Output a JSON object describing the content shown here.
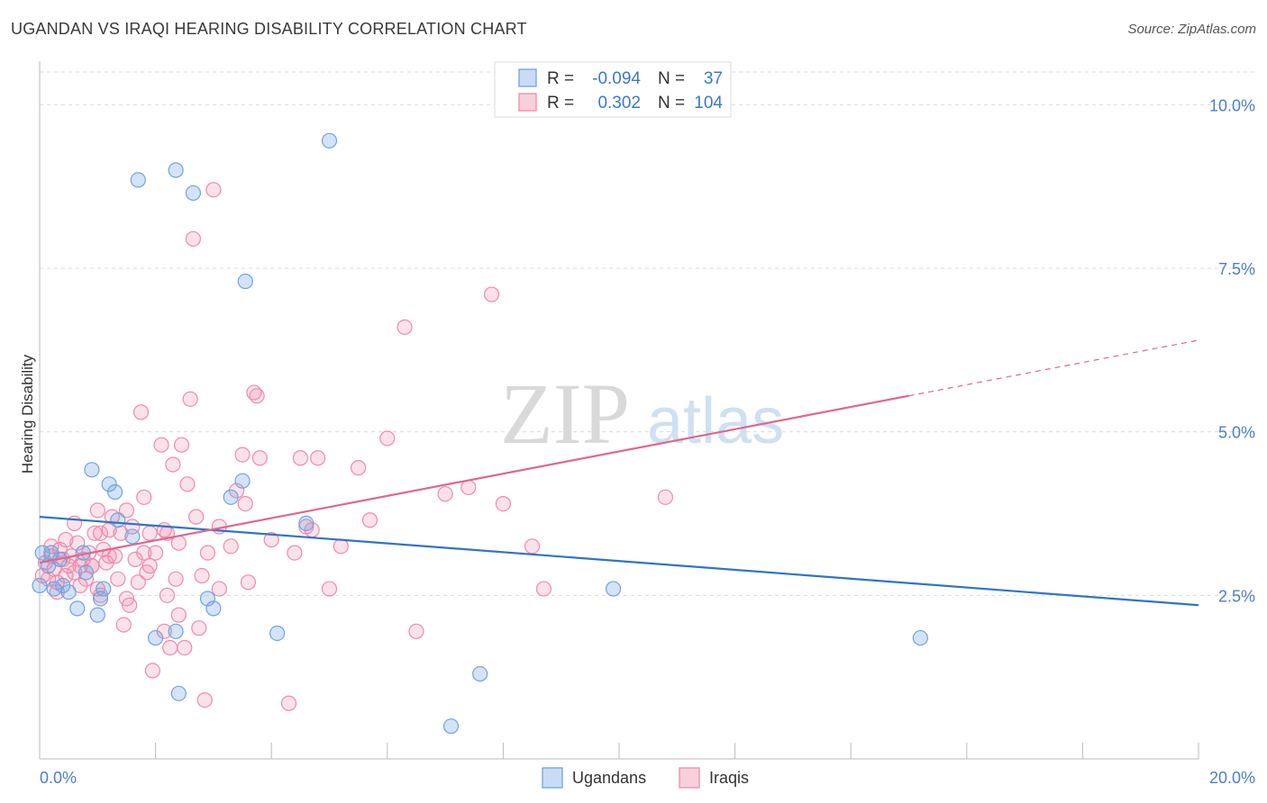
{
  "chart_data": {
    "type": "scatter",
    "title": "UGANDAN VS IRAQI HEARING DISABILITY CORRELATION CHART",
    "source": "Source: ZipAtlas.com",
    "ylabel": "Hearing Disability",
    "xlim": [
      0,
      20
    ],
    "ylim": [
      0,
      10.5
    ],
    "x_ticks": [
      {
        "value": 0,
        "label": "0.0%"
      },
      {
        "value": 20,
        "label": "20.0%"
      }
    ],
    "y_ticks": [
      {
        "value": 2.5,
        "label": "2.5%"
      },
      {
        "value": 5.0,
        "label": "5.0%"
      },
      {
        "value": 7.5,
        "label": "7.5%"
      },
      {
        "value": 10.0,
        "label": "10.0%"
      }
    ],
    "watermark": {
      "part1": "ZIP",
      "part2": "atlas"
    },
    "legend": {
      "rows": [
        {
          "r_label": "R =",
          "r_value": "-0.094",
          "n_label": "N =",
          "n_value": "37",
          "color": "#6fa3e0"
        },
        {
          "r_label": "R =",
          "r_value": "0.302",
          "n_label": "N =",
          "n_value": "104",
          "color": "#f08aaa"
        }
      ]
    },
    "bottom_legend": [
      {
        "label": "Ugandans",
        "color": "#6fa3e0"
      },
      {
        "label": "Iraqis",
        "color": "#f08aaa"
      }
    ],
    "series": [
      {
        "name": "Ugandans",
        "color": "#6fa3e0",
        "line_color": "#2f74c9",
        "trend": {
          "x0": 0,
          "y0": 3.7,
          "x1": 20,
          "y1": 2.35
        },
        "points": [
          [
            0.0,
            2.65
          ],
          [
            0.05,
            3.15
          ],
          [
            0.2,
            3.15
          ],
          [
            0.25,
            2.6
          ],
          [
            0.35,
            3.05
          ],
          [
            0.4,
            2.65
          ],
          [
            0.5,
            2.55
          ],
          [
            0.65,
            2.3
          ],
          [
            0.75,
            3.15
          ],
          [
            0.8,
            2.85
          ],
          [
            0.9,
            4.42
          ],
          [
            1.0,
            2.2
          ],
          [
            1.05,
            2.45
          ],
          [
            1.1,
            2.6
          ],
          [
            1.2,
            4.2
          ],
          [
            1.3,
            4.08
          ],
          [
            1.35,
            3.65
          ],
          [
            1.6,
            3.4
          ],
          [
            1.7,
            8.85
          ],
          [
            2.0,
            1.85
          ],
          [
            2.35,
            1.95
          ],
          [
            2.4,
            1.0
          ],
          [
            2.35,
            9.0
          ],
          [
            2.65,
            8.65
          ],
          [
            2.9,
            2.45
          ],
          [
            3.0,
            2.3
          ],
          [
            3.3,
            4.0
          ],
          [
            3.5,
            4.25
          ],
          [
            3.55,
            7.3
          ],
          [
            4.1,
            1.92
          ],
          [
            4.6,
            3.6
          ],
          [
            5.0,
            9.45
          ],
          [
            7.1,
            0.5
          ],
          [
            7.6,
            1.3
          ],
          [
            9.9,
            2.6
          ],
          [
            15.2,
            1.85
          ],
          [
            0.15,
            2.95
          ]
        ]
      },
      {
        "name": "Iraqis",
        "color": "#f08aaa",
        "line_color": "#e0668f",
        "trend": {
          "x0": 0,
          "y0": 3.0,
          "x1": 15,
          "y1": 5.55
        },
        "trend_ext": {
          "x0": 15,
          "y0": 5.55,
          "x1": 20,
          "y1": 6.4
        },
        "points": [
          [
            0.05,
            2.8
          ],
          [
            0.1,
            3.0
          ],
          [
            0.15,
            2.75
          ],
          [
            0.2,
            3.1
          ],
          [
            0.25,
            2.9
          ],
          [
            0.3,
            2.7
          ],
          [
            0.35,
            3.2
          ],
          [
            0.4,
            3.05
          ],
          [
            0.45,
            2.8
          ],
          [
            0.5,
            2.95
          ],
          [
            0.55,
            3.1
          ],
          [
            0.6,
            2.85
          ],
          [
            0.65,
            3.3
          ],
          [
            0.7,
            2.65
          ],
          [
            0.75,
            3.05
          ],
          [
            0.8,
            2.75
          ],
          [
            0.85,
            3.15
          ],
          [
            0.9,
            2.95
          ],
          [
            0.95,
            3.45
          ],
          [
            1.0,
            3.8
          ],
          [
            1.05,
            2.5
          ],
          [
            1.1,
            3.2
          ],
          [
            1.15,
            3.0
          ],
          [
            1.2,
            3.5
          ],
          [
            1.25,
            3.7
          ],
          [
            1.3,
            3.1
          ],
          [
            1.35,
            2.75
          ],
          [
            1.4,
            3.45
          ],
          [
            1.45,
            2.05
          ],
          [
            1.5,
            3.8
          ],
          [
            1.55,
            2.35
          ],
          [
            1.6,
            3.55
          ],
          [
            1.65,
            3.05
          ],
          [
            1.7,
            2.7
          ],
          [
            1.75,
            5.3
          ],
          [
            1.8,
            4.0
          ],
          [
            1.85,
            2.85
          ],
          [
            1.9,
            3.45
          ],
          [
            1.95,
            1.35
          ],
          [
            2.0,
            3.15
          ],
          [
            2.1,
            4.8
          ],
          [
            2.15,
            3.5
          ],
          [
            2.2,
            2.5
          ],
          [
            2.25,
            1.7
          ],
          [
            2.3,
            4.5
          ],
          [
            2.35,
            2.75
          ],
          [
            2.4,
            3.3
          ],
          [
            2.45,
            4.8
          ],
          [
            2.5,
            1.7
          ],
          [
            2.55,
            4.2
          ],
          [
            2.6,
            5.5
          ],
          [
            2.65,
            7.95
          ],
          [
            2.7,
            3.7
          ],
          [
            2.75,
            2.0
          ],
          [
            2.8,
            2.8
          ],
          [
            2.85,
            0.9
          ],
          [
            2.9,
            3.15
          ],
          [
            3.0,
            8.7
          ],
          [
            3.1,
            2.6
          ],
          [
            3.3,
            3.25
          ],
          [
            3.4,
            4.1
          ],
          [
            3.5,
            4.65
          ],
          [
            3.55,
            3.9
          ],
          [
            3.6,
            2.7
          ],
          [
            3.7,
            5.6
          ],
          [
            3.75,
            5.55
          ],
          [
            3.8,
            4.6
          ],
          [
            4.0,
            3.35
          ],
          [
            4.3,
            0.85
          ],
          [
            4.4,
            3.15
          ],
          [
            4.5,
            4.6
          ],
          [
            4.6,
            3.55
          ],
          [
            4.7,
            3.5
          ],
          [
            4.8,
            4.6
          ],
          [
            5.0,
            2.6
          ],
          [
            5.2,
            3.25
          ],
          [
            5.5,
            4.45
          ],
          [
            5.7,
            3.65
          ],
          [
            6.0,
            4.9
          ],
          [
            6.3,
            6.6
          ],
          [
            6.5,
            1.95
          ],
          [
            7.0,
            4.05
          ],
          [
            7.4,
            4.15
          ],
          [
            7.8,
            7.1
          ],
          [
            8.0,
            3.9
          ],
          [
            8.5,
            3.25
          ],
          [
            8.7,
            2.6
          ],
          [
            10.8,
            4.0
          ],
          [
            1.2,
            3.1
          ],
          [
            0.6,
            3.6
          ],
          [
            1.0,
            2.6
          ],
          [
            1.9,
            2.95
          ],
          [
            2.15,
            1.95
          ],
          [
            3.1,
            3.55
          ],
          [
            0.3,
            2.55
          ],
          [
            0.45,
            3.35
          ],
          [
            1.5,
            2.45
          ],
          [
            0.9,
            2.95
          ],
          [
            2.4,
            2.2
          ],
          [
            1.8,
            3.15
          ],
          [
            0.2,
            3.25
          ],
          [
            0.7,
            2.95
          ],
          [
            2.2,
            3.45
          ],
          [
            1.05,
            3.45
          ]
        ]
      }
    ]
  }
}
